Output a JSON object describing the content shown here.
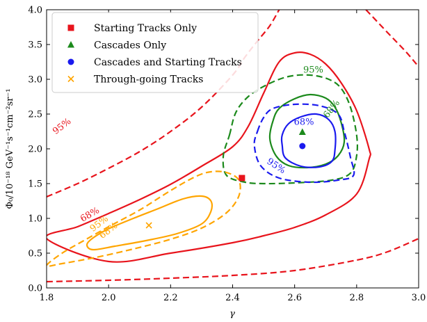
{
  "chart_data": {
    "type": "scatter",
    "xlabel": "γ",
    "ylabel": "Φ₀/10⁻¹⁸ GeV⁻¹s⁻¹cm⁻²sr⁻¹",
    "xlim": [
      1.8,
      3.0
    ],
    "ylim": [
      0.0,
      4.0
    ],
    "x_ticks": [
      "1.8",
      "2.0",
      "2.2",
      "2.4",
      "2.6",
      "2.8",
      "3.0"
    ],
    "y_ticks": [
      "0.0",
      "0.5",
      "1.0",
      "1.5",
      "2.0",
      "2.5",
      "3.0",
      "3.5",
      "4.0"
    ],
    "grid": false,
    "legend_position": "top-left",
    "colors": {
      "starting_tracks": "#e8141c",
      "cascades": "#1c8a1c",
      "combined": "#1a1aee",
      "through_going": "#ffa500"
    },
    "series": [
      {
        "name": "Starting Tracks Only",
        "marker": "square",
        "color": "#e8141c",
        "best_fit": {
          "x": 2.43,
          "y": 1.58
        },
        "contour_labels": [
          "68%",
          "95%"
        ],
        "contours": {
          "68": [
            [
              1.8,
              0.71
            ],
            [
              1.9,
              0.88
            ],
            [
              2.0,
              1.07
            ],
            [
              2.1,
              1.27
            ],
            [
              2.2,
              1.49
            ],
            [
              2.3,
              1.75
            ],
            [
              2.4,
              2.03
            ],
            [
              2.45,
              2.32
            ],
            [
              2.5,
              2.8
            ],
            [
              2.55,
              3.25
            ],
            [
              2.6,
              3.38
            ],
            [
              2.65,
              3.36
            ],
            [
              2.7,
              3.22
            ],
            [
              2.75,
              2.95
            ],
            [
              2.8,
              2.55
            ],
            [
              2.84,
              2.0
            ],
            [
              2.84,
              1.85
            ],
            [
              2.8,
              1.35
            ],
            [
              2.7,
              1.05
            ],
            [
              2.6,
              0.87
            ],
            [
              2.5,
              0.75
            ],
            [
              2.4,
              0.65
            ],
            [
              2.2,
              0.5
            ],
            [
              2.0,
              0.38
            ],
            [
              1.8,
              0.27
            ]
          ],
          "95": {
            "upper": [
              [
                1.8,
                1.31
              ],
              [
                1.9,
                1.5
              ],
              [
                2.0,
                1.72
              ],
              [
                2.1,
                1.96
              ],
              [
                2.2,
                2.25
              ],
              [
                2.3,
                2.6
              ],
              [
                2.4,
                3.06
              ],
              [
                2.44,
                3.32
              ],
              [
                2.48,
                3.55
              ],
              [
                2.52,
                3.77
              ],
              [
                2.55,
                4.0
              ]
            ],
            "lower": [
              [
                1.8,
                0.09
              ],
              [
                2.0,
                0.11
              ],
              [
                2.2,
                0.14
              ],
              [
                2.4,
                0.18
              ],
              [
                2.6,
                0.25
              ],
              [
                2.8,
                0.4
              ],
              [
                2.9,
                0.52
              ],
              [
                3.0,
                0.71
              ]
            ],
            "right": [
              [
                2.83,
                4.0
              ],
              [
                2.9,
                3.67
              ],
              [
                2.96,
                3.39
              ],
              [
                3.0,
                3.18
              ]
            ]
          }
        }
      },
      {
        "name": "Cascades Only",
        "marker": "triangle",
        "color": "#1c8a1c",
        "best_fit": {
          "x": 2.625,
          "y": 2.24
        },
        "contour_labels": [
          "68%",
          "95%"
        ],
        "contours": {
          "68": [
            [
              2.53,
              2.4
            ],
            [
              2.55,
              2.58
            ],
            [
              2.6,
              2.72
            ],
            [
              2.65,
              2.78
            ],
            [
              2.7,
              2.73
            ],
            [
              2.73,
              2.6
            ],
            [
              2.75,
              2.38
            ],
            [
              2.76,
              2.1
            ],
            [
              2.74,
              1.9
            ],
            [
              2.7,
              1.78
            ],
            [
              2.64,
              1.73
            ],
            [
              2.58,
              1.76
            ],
            [
              2.54,
              1.9
            ],
            [
              2.52,
              2.15
            ],
            [
              2.53,
              2.4
            ]
          ],
          "95": [
            [
              2.39,
              2.2
            ],
            [
              2.41,
              2.52
            ],
            [
              2.45,
              2.75
            ],
            [
              2.51,
              2.92
            ],
            [
              2.58,
              3.04
            ],
            [
              2.65,
              3.06
            ],
            [
              2.71,
              3.0
            ],
            [
              2.75,
              2.87
            ],
            [
              2.78,
              2.6
            ],
            [
              2.8,
              2.2
            ],
            [
              2.8,
              1.9
            ],
            [
              2.78,
              1.65
            ],
            [
              2.72,
              1.55
            ],
            [
              2.6,
              1.51
            ],
            [
              2.5,
              1.5
            ],
            [
              2.44,
              1.52
            ],
            [
              2.38,
              1.62
            ],
            [
              2.37,
              1.9
            ],
            [
              2.39,
              2.2
            ]
          ]
        }
      },
      {
        "name": "Cascades and Starting Tracks",
        "marker": "circle",
        "color": "#1a1aee",
        "best_fit": {
          "x": 2.625,
          "y": 2.04
        },
        "contour_labels": [
          "68%",
          "95%"
        ],
        "contours": {
          "68": [
            [
              2.56,
              2.2
            ],
            [
              2.58,
              2.36
            ],
            [
              2.62,
              2.46
            ],
            [
              2.67,
              2.5
            ],
            [
              2.71,
              2.42
            ],
            [
              2.73,
              2.25
            ],
            [
              2.73,
              1.98
            ],
            [
              2.72,
              1.82
            ],
            [
              2.68,
              1.74
            ],
            [
              2.62,
              1.75
            ],
            [
              2.57,
              1.87
            ],
            [
              2.56,
              2.05
            ],
            [
              2.56,
              2.2
            ]
          ],
          "95": [
            [
              2.48,
              2.25
            ],
            [
              2.5,
              2.45
            ],
            [
              2.53,
              2.58
            ],
            [
              2.6,
              2.64
            ],
            [
              2.68,
              2.62
            ],
            [
              2.74,
              2.5
            ],
            [
              2.76,
              2.25
            ],
            [
              2.78,
              1.88
            ],
            [
              2.79,
              1.62
            ],
            [
              2.74,
              1.55
            ],
            [
              2.65,
              1.52
            ],
            [
              2.55,
              1.58
            ],
            [
              2.49,
              1.76
            ],
            [
              2.47,
              2.05
            ],
            [
              2.48,
              2.25
            ]
          ]
        }
      },
      {
        "name": "Through-going Tracks",
        "marker": "x",
        "color": "#ffa500",
        "best_fit": {
          "x": 2.13,
          "y": 0.9
        },
        "contour_labels": [
          "68%",
          "95%"
        ],
        "contours": {
          "68": [
            [
              1.93,
              0.62
            ],
            [
              1.95,
              0.72
            ],
            [
              2.0,
              0.85
            ],
            [
              2.08,
              1.0
            ],
            [
              2.16,
              1.14
            ],
            [
              2.24,
              1.28
            ],
            [
              2.3,
              1.32
            ],
            [
              2.33,
              1.25
            ],
            [
              2.33,
              1.1
            ],
            [
              2.3,
              0.92
            ],
            [
              2.22,
              0.78
            ],
            [
              2.12,
              0.68
            ],
            [
              2.02,
              0.6
            ],
            [
              1.95,
              0.55
            ],
            [
              1.93,
              0.62
            ]
          ],
          "95": [
            [
              1.8,
              0.32
            ],
            [
              1.85,
              0.5
            ],
            [
              1.92,
              0.68
            ],
            [
              2.0,
              0.88
            ],
            [
              2.1,
              1.12
            ],
            [
              2.2,
              1.4
            ],
            [
              2.28,
              1.6
            ],
            [
              2.33,
              1.67
            ],
            [
              2.38,
              1.66
            ],
            [
              2.42,
              1.55
            ],
            [
              2.42,
              1.32
            ],
            [
              2.38,
              1.08
            ],
            [
              2.3,
              0.86
            ],
            [
              2.2,
              0.7
            ],
            [
              2.08,
              0.56
            ],
            [
              1.96,
              0.44
            ],
            [
              1.85,
              0.35
            ],
            [
              1.8,
              0.32
            ]
          ]
        }
      }
    ]
  }
}
